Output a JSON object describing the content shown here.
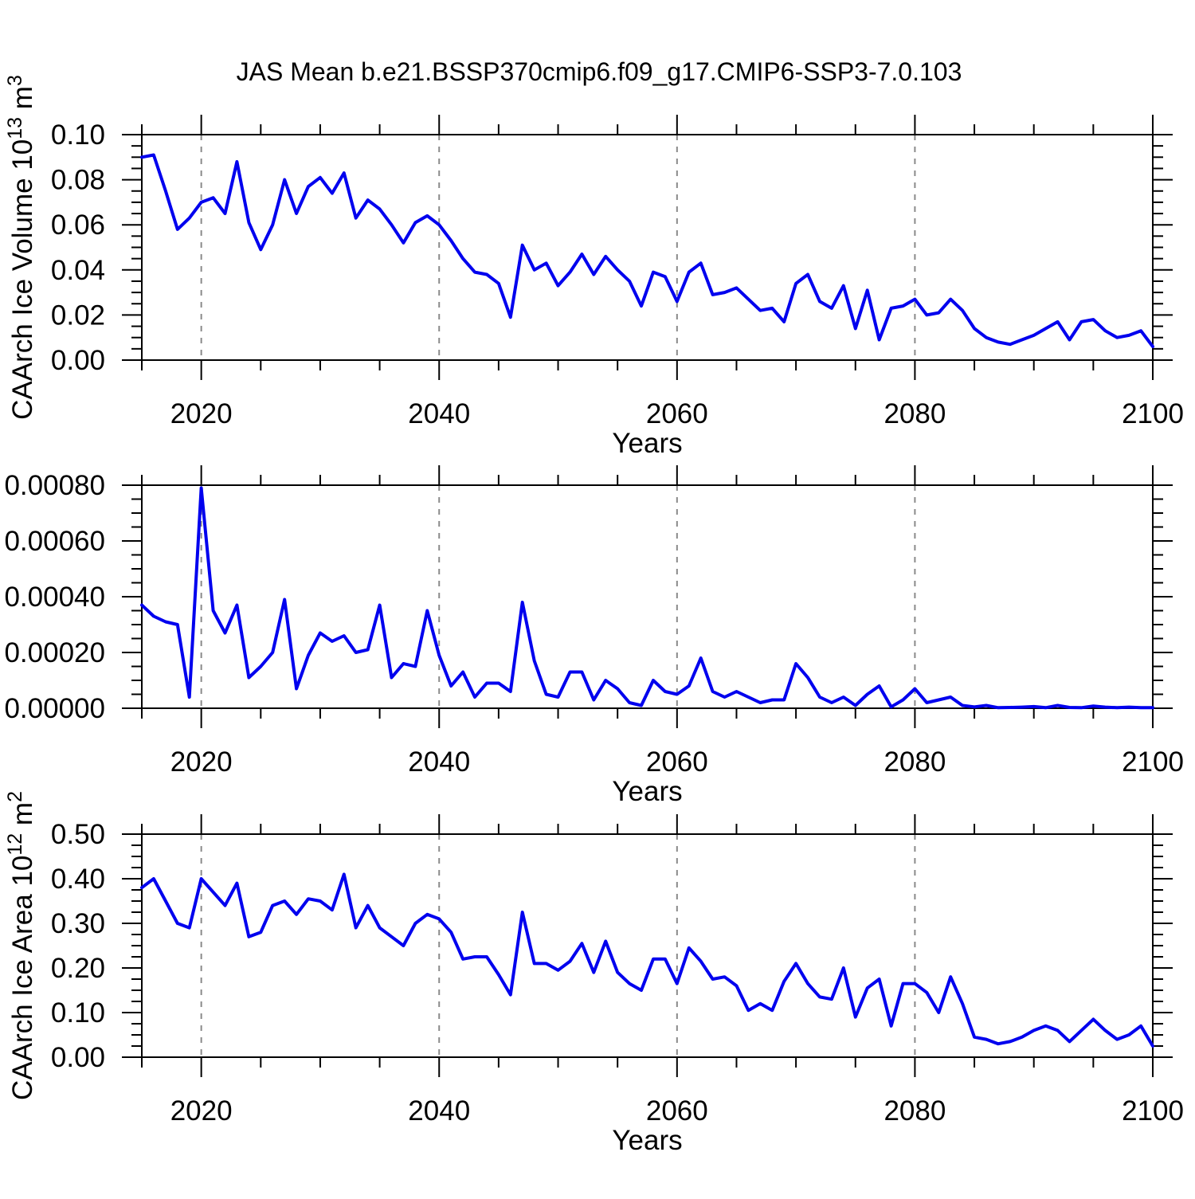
{
  "title": "JAS Mean b.e21.BSSP370cmip6.f09_g17.CMIP6-SSP3-7.0.103",
  "xlabel": "Years",
  "colors": {
    "line": "#0000EE",
    "grid": "#8A8A8A",
    "axis": "#000000",
    "text": "#000000",
    "background": "#FFFFFF"
  },
  "xlim": [
    2015,
    2100
  ],
  "x_minor_step": 5,
  "xticks": [
    {
      "v": 2015,
      "label": ""
    },
    {
      "v": 2020,
      "label": "2020"
    },
    {
      "v": 2040,
      "label": "2040"
    },
    {
      "v": 2060,
      "label": "2060"
    },
    {
      "v": 2080,
      "label": "2080"
    },
    {
      "v": 2100,
      "label": "2100"
    }
  ],
  "grid_x": [
    2020,
    2040,
    2060,
    2080
  ],
  "chart_data": [
    {
      "type": "line",
      "name": "caarch-ice-volume",
      "title": "JAS Mean b.e21.BSSP370cmip6.f09_g17.CMIP6-SSP3-7.0.103",
      "xlabel": "Years",
      "ylabel": "CAArch Ice Volume 10^13 m^3",
      "ylabel_segments": [
        {
          "t": "CAArch Ice Volume 10"
        },
        {
          "t": "13",
          "sup": true
        },
        {
          "t": " m"
        },
        {
          "t": "3",
          "sup": true
        }
      ],
      "ylim": [
        0,
        0.1
      ],
      "y_minor_step": 0.005,
      "yticks": [
        {
          "v": 0.0,
          "label": "0.00"
        },
        {
          "v": 0.02,
          "label": "0.02"
        },
        {
          "v": 0.04,
          "label": "0.04"
        },
        {
          "v": 0.06,
          "label": "0.06"
        },
        {
          "v": 0.08,
          "label": "0.08"
        },
        {
          "v": 0.1,
          "label": "0.10"
        }
      ],
      "legend": "none",
      "grid": "vertical-dashed-at-x-majors",
      "x_start": 2015,
      "x_step": 1,
      "values": [
        0.09,
        0.091,
        0.075,
        0.058,
        0.063,
        0.07,
        0.072,
        0.065,
        0.088,
        0.061,
        0.049,
        0.06,
        0.08,
        0.065,
        0.077,
        0.081,
        0.074,
        0.083,
        0.063,
        0.071,
        0.067,
        0.06,
        0.052,
        0.061,
        0.064,
        0.06,
        0.053,
        0.045,
        0.039,
        0.038,
        0.034,
        0.019,
        0.051,
        0.04,
        0.043,
        0.033,
        0.039,
        0.047,
        0.038,
        0.046,
        0.04,
        0.035,
        0.024,
        0.039,
        0.037,
        0.026,
        0.039,
        0.043,
        0.029,
        0.03,
        0.032,
        0.027,
        0.022,
        0.023,
        0.017,
        0.034,
        0.038,
        0.026,
        0.023,
        0.033,
        0.014,
        0.031,
        0.009,
        0.023,
        0.024,
        0.027,
        0.02,
        0.021,
        0.027,
        0.022,
        0.014,
        0.01,
        0.008,
        0.007,
        0.009,
        0.011,
        0.014,
        0.017,
        0.009,
        0.017,
        0.018,
        0.013,
        0.01,
        0.011,
        0.013,
        0.006
      ]
    },
    {
      "type": "line",
      "name": "caarch-middle-unlabeled",
      "title": "",
      "xlabel": "Years",
      "ylabel": "",
      "ylabel_segments": [],
      "ylim": [
        0,
        0.0008
      ],
      "y_minor_step": 5e-05,
      "yticks": [
        {
          "v": 0.0,
          "label": "0.00000"
        },
        {
          "v": 0.0002,
          "label": "0.00020"
        },
        {
          "v": 0.0004,
          "label": "0.00040"
        },
        {
          "v": 0.0006,
          "label": "0.00060"
        },
        {
          "v": 0.0008,
          "label": "0.00080"
        }
      ],
      "legend": "none",
      "grid": "vertical-dashed-at-x-majors",
      "x_start": 2015,
      "x_step": 1,
      "values": [
        0.00037,
        0.00033,
        0.00031,
        0.0003,
        4e-05,
        0.00079,
        0.00035,
        0.00027,
        0.00037,
        0.00011,
        0.00015,
        0.0002,
        0.00039,
        7e-05,
        0.00019,
        0.00027,
        0.00024,
        0.00026,
        0.0002,
        0.00021,
        0.00037,
        0.00011,
        0.00016,
        0.00015,
        0.00035,
        0.00019,
        8e-05,
        0.00013,
        4e-05,
        9e-05,
        9e-05,
        6e-05,
        0.00038,
        0.00017,
        5e-05,
        4e-05,
        0.00013,
        0.00013,
        3e-05,
        0.0001,
        7e-05,
        2e-05,
        1e-05,
        0.0001,
        6e-05,
        5e-05,
        8e-05,
        0.00018,
        6e-05,
        4e-05,
        6e-05,
        4e-05,
        2e-05,
        3e-05,
        3e-05,
        0.00016,
        0.00011,
        4e-05,
        2e-05,
        4e-05,
        1e-05,
        5e-05,
        8e-05,
        5e-06,
        3e-05,
        7e-05,
        2e-05,
        3e-05,
        4e-05,
        1e-05,
        5e-06,
        1e-05,
        2e-06,
        3e-06,
        4e-06,
        6e-06,
        2e-06,
        1e-05,
        3e-06,
        2e-06,
        8e-06,
        4e-06,
        2e-06,
        4e-06,
        2e-06,
        2e-06
      ]
    },
    {
      "type": "line",
      "name": "caarch-ice-area",
      "title": "",
      "xlabel": "Years",
      "ylabel": "CAArch Ice Area 10^12 m^2",
      "ylabel_segments": [
        {
          "t": "CAArch Ice Area 10"
        },
        {
          "t": "12",
          "sup": true
        },
        {
          "t": " m"
        },
        {
          "t": "2",
          "sup": true
        }
      ],
      "ylim": [
        0,
        0.5
      ],
      "y_minor_step": 0.025,
      "yticks": [
        {
          "v": 0.0,
          "label": "0.00"
        },
        {
          "v": 0.1,
          "label": "0.10"
        },
        {
          "v": 0.2,
          "label": "0.20"
        },
        {
          "v": 0.3,
          "label": "0.30"
        },
        {
          "v": 0.4,
          "label": "0.40"
        },
        {
          "v": 0.5,
          "label": "0.50"
        }
      ],
      "legend": "none",
      "grid": "vertical-dashed-at-x-majors",
      "x_start": 2015,
      "x_step": 1,
      "values": [
        0.38,
        0.4,
        0.35,
        0.3,
        0.29,
        0.4,
        0.37,
        0.34,
        0.39,
        0.27,
        0.28,
        0.34,
        0.35,
        0.32,
        0.355,
        0.35,
        0.33,
        0.41,
        0.29,
        0.34,
        0.29,
        0.27,
        0.25,
        0.3,
        0.32,
        0.31,
        0.28,
        0.22,
        0.225,
        0.225,
        0.185,
        0.14,
        0.325,
        0.21,
        0.21,
        0.195,
        0.215,
        0.255,
        0.19,
        0.26,
        0.19,
        0.165,
        0.15,
        0.22,
        0.22,
        0.165,
        0.245,
        0.215,
        0.175,
        0.18,
        0.16,
        0.105,
        0.12,
        0.105,
        0.17,
        0.21,
        0.165,
        0.135,
        0.13,
        0.2,
        0.09,
        0.155,
        0.175,
        0.07,
        0.165,
        0.165,
        0.145,
        0.1,
        0.18,
        0.12,
        0.045,
        0.04,
        0.03,
        0.035,
        0.045,
        0.06,
        0.07,
        0.06,
        0.035,
        0.06,
        0.085,
        0.06,
        0.04,
        0.05,
        0.07,
        0.025
      ]
    }
  ]
}
